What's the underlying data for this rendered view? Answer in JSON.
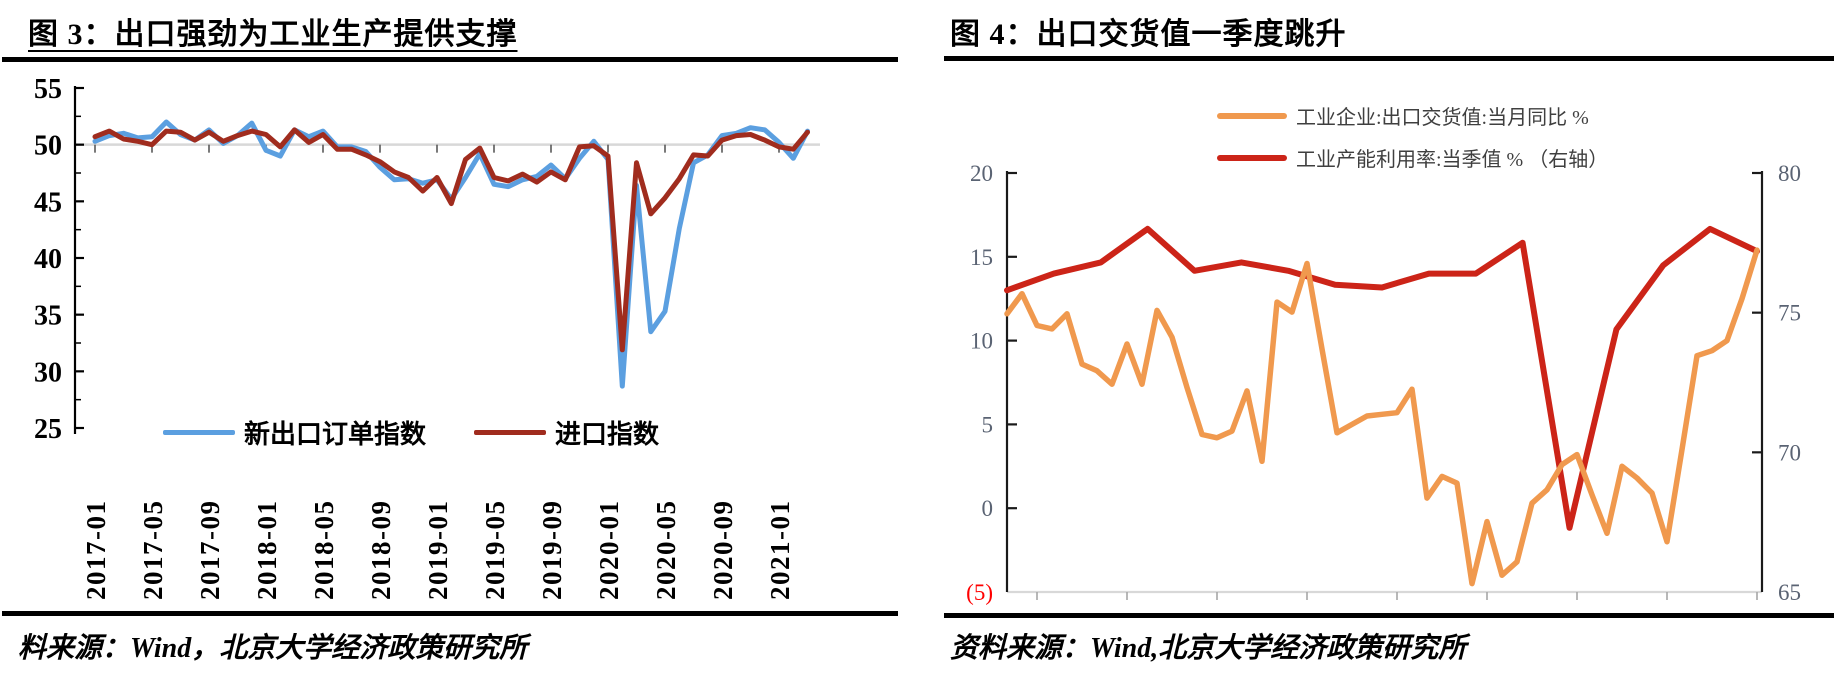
{
  "chart_data": [
    {
      "type": "line",
      "title": "图 3：出口强劲为工业生产提供支撑",
      "source": "料来源：Wind，北京大学经济政策研究所",
      "x_tick_labels": [
        "2017-01",
        "2017-05",
        "2017-09",
        "2018-01",
        "2018-05",
        "2018-09",
        "2019-01",
        "2019-05",
        "2019-09",
        "2020-01",
        "2020-05",
        "2020-09",
        "2021-01"
      ],
      "ylim": [
        25,
        55
      ],
      "yticks": [
        55,
        50,
        45,
        40,
        35,
        30,
        25
      ],
      "x_axis_cross_value": 50,
      "grid": "none (light category axis line at value 50)",
      "legend_position": "inside-bottom-left",
      "series": [
        {
          "name": "新出口订单指数",
          "color": "#5B9FE0",
          "values": [
            50.3,
            50.8,
            51.0,
            50.6,
            50.7,
            52.0,
            50.9,
            50.4,
            51.3,
            50.1,
            50.8,
            51.9,
            49.5,
            49.0,
            51.3,
            50.7,
            51.2,
            49.8,
            49.8,
            49.4,
            48.0,
            46.9,
            47.0,
            46.6,
            46.9,
            45.2,
            47.1,
            49.2,
            46.5,
            46.3,
            46.9,
            47.2,
            48.2,
            47.0,
            48.8,
            50.3,
            48.7,
            28.7,
            46.4,
            33.5,
            35.3,
            42.6,
            48.4,
            49.1,
            50.8,
            51.0,
            51.5,
            51.3,
            50.2,
            48.8,
            51.2
          ]
        },
        {
          "name": "进口指数",
          "color": "#A02C1E",
          "values": [
            50.7,
            51.2,
            50.5,
            50.3,
            50.0,
            51.2,
            51.1,
            50.4,
            51.1,
            50.3,
            50.8,
            51.2,
            50.9,
            49.8,
            51.3,
            50.2,
            50.9,
            49.6,
            49.6,
            49.1,
            48.5,
            47.6,
            47.1,
            45.9,
            47.1,
            44.8,
            48.7,
            49.7,
            47.1,
            46.8,
            47.4,
            46.7,
            47.6,
            46.9,
            49.8,
            49.9,
            49.0,
            31.9,
            48.4,
            43.9,
            45.3,
            47.0,
            49.1,
            49.0,
            50.4,
            50.8,
            50.9,
            50.4,
            49.8,
            49.6,
            51.1
          ]
        }
      ]
    },
    {
      "type": "line",
      "title": "图 4：出口交货值一季度跳升",
      "source": "资料来源：Wind,北京大学经济政策研究所",
      "left_axis": {
        "lim": [
          -5,
          20
        ],
        "ticks": [
          "20",
          "15",
          "10",
          "5",
          "0",
          "(5)"
        ],
        "tick_color": "#5A6373",
        "negative_tick_color": "#FF0000"
      },
      "right_axis": {
        "lim": [
          65,
          80
        ],
        "ticks": [
          "80",
          "75",
          "70",
          "65"
        ],
        "tick_color": "#5A6373"
      },
      "legend_position": "top",
      "series": [
        {
          "name": "工业企业:出口交货值:当月同比 %",
          "axis": "left",
          "color": "#F0994E",
          "values": [
            11.6,
            12.8,
            10.9,
            10.7,
            11.6,
            8.6,
            8.2,
            7.4,
            9.8,
            7.4,
            11.8,
            10.2,
            7.2,
            4.4,
            4.2,
            4.6,
            7.0,
            2.8,
            12.3,
            11.7,
            14.6,
            9.5,
            4.5,
            5.0,
            5.5,
            5.6,
            5.7,
            7.1,
            0.6,
            1.9,
            1.5,
            -4.5,
            -0.8,
            -4.0,
            -3.2,
            0.3,
            1.1,
            2.6,
            3.2,
            0.8,
            -1.5,
            2.5,
            1.8,
            0.9,
            -2.0,
            3.5,
            9.1,
            9.4,
            10.0,
            12.5,
            15.4
          ]
        },
        {
          "name": "工业产能利用率:当季值 % （右轴）",
          "axis": "right",
          "color": "#CC2418",
          "values": [
            75.8,
            76.4,
            76.8,
            78.0,
            76.5,
            76.8,
            76.5,
            76.0,
            75.9,
            76.4,
            76.4,
            77.5,
            67.3,
            74.4,
            76.7,
            78.0,
            77.2
          ]
        }
      ]
    }
  ]
}
